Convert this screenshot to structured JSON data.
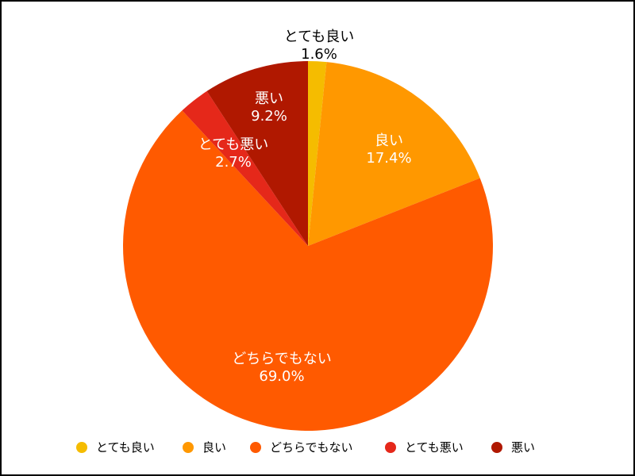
{
  "chart_data": {
    "type": "pie",
    "title": "",
    "slices": [
      {
        "label": "とても良い",
        "value": 1.6,
        "value_text": "1.6%",
        "color": "#F5BC00",
        "label_color": "#000000"
      },
      {
        "label": "良い",
        "value": 17.4,
        "value_text": "17.4%",
        "color": "#FF9800",
        "label_color": "#FFFFFF"
      },
      {
        "label": "どちらでもない",
        "value": 69.0,
        "value_text": "69.0%",
        "color": "#FF5A00",
        "label_color": "#FFFFFF"
      },
      {
        "label": "とても悪い",
        "value": 2.7,
        "value_text": "2.7%",
        "color": "#E5281A",
        "label_color": "#FFFFFF"
      },
      {
        "label": "悪い",
        "value": 9.2,
        "value_text": "9.2%",
        "color": "#B01800",
        "label_color": "#FFFFFF"
      }
    ],
    "start_angle": "12 o'clock",
    "direction": "clockwise",
    "legend_position": "bottom"
  }
}
